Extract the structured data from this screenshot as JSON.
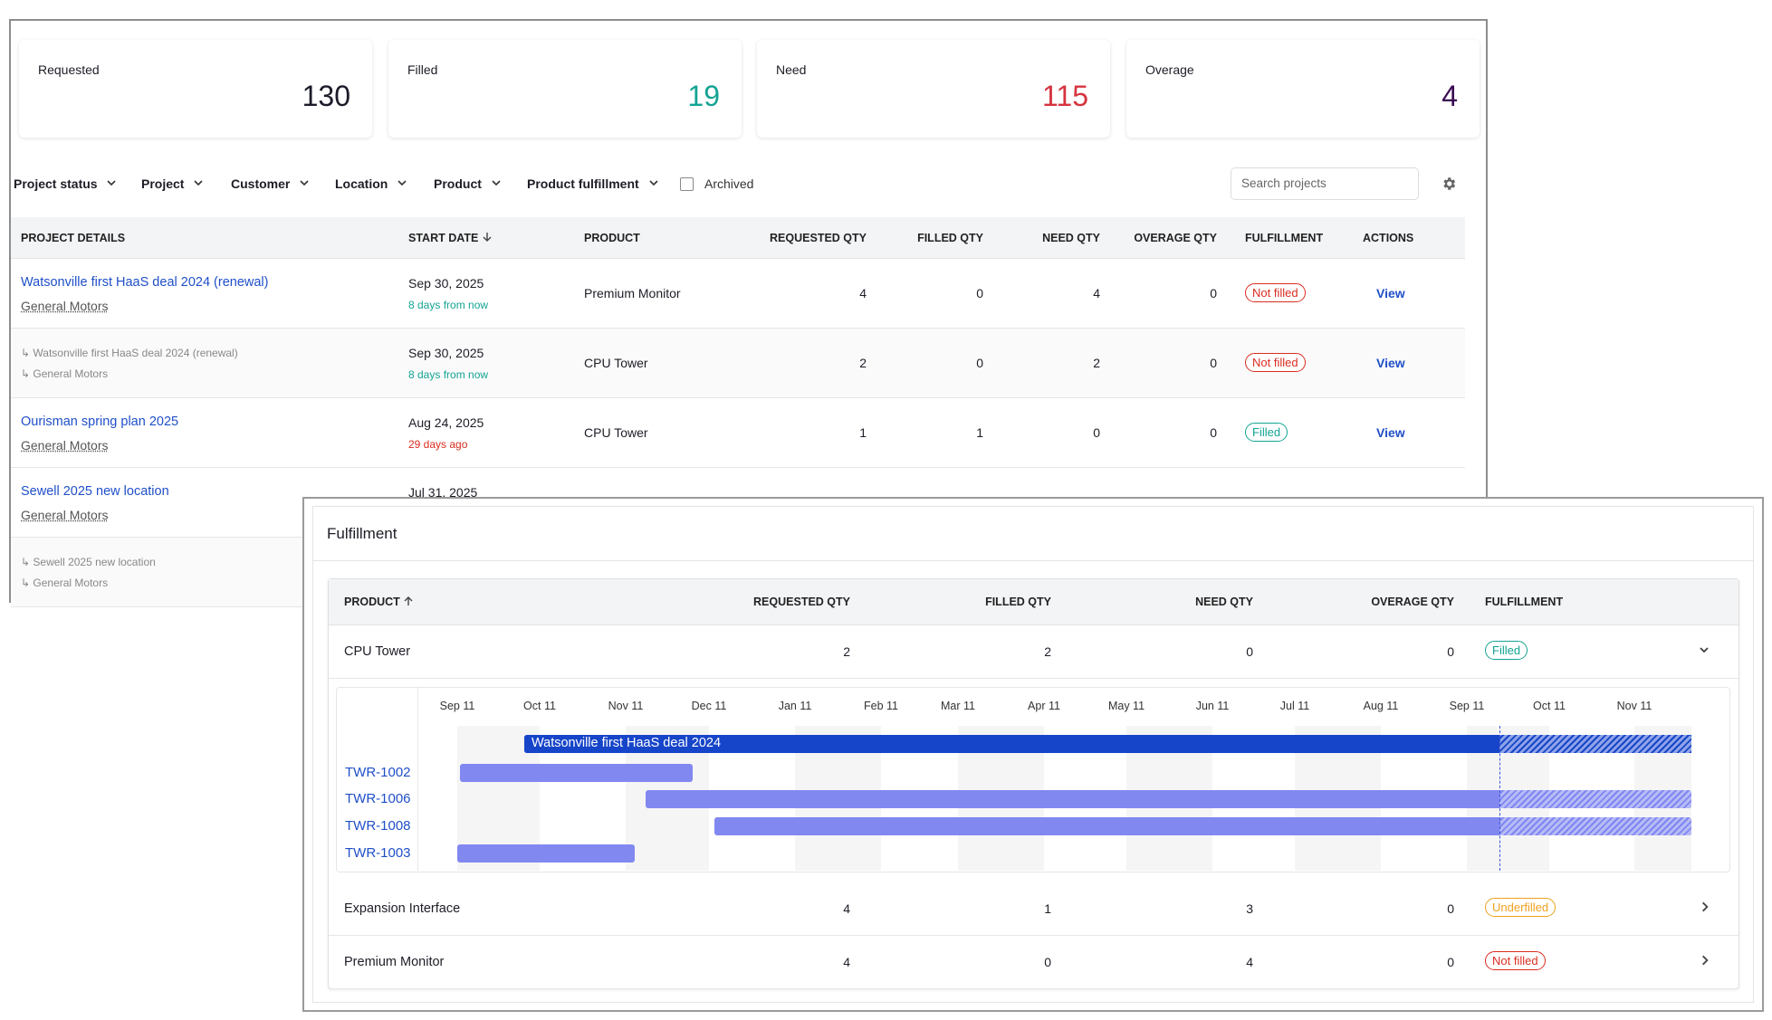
{
  "stats": [
    {
      "label": "Requested",
      "value": 130,
      "color": "#1b1b29"
    },
    {
      "label": "Filled",
      "value": 19,
      "color": "#14a393"
    },
    {
      "label": "Need",
      "value": 115,
      "color": "#d5343f"
    },
    {
      "label": "Overage",
      "value": 4,
      "color": "#3b0b52"
    }
  ],
  "filters": [
    "Project status",
    "Project",
    "Customer",
    "Location",
    "Product",
    "Product fulfillment"
  ],
  "archived": "Archived",
  "search_placeholder": "Search projects",
  "table": {
    "columns": [
      "PROJECT DETAILS",
      "START DATE",
      "PRODUCT",
      "REQUESTED QTY",
      "FILLED QTY",
      "NEED QTY",
      "OVERAGE QTY",
      "FULFILLMENT",
      "ACTIONS"
    ],
    "rows": [
      {
        "project": "Watsonville first HaaS deal 2024 (renewal)",
        "customer": "General Motors",
        "date": "Sep 30, 2025",
        "relative": "8 days from now",
        "relative_color": "#14a393",
        "product": "Premium Monitor",
        "requested": 4,
        "filled": 0,
        "need": 4,
        "overage": 0,
        "fulfillment": "Not filled",
        "fulfillment_color": "#d92d20",
        "action": "View"
      },
      {
        "child": true,
        "project": "↳ Watsonville first HaaS deal 2024 (renewal)",
        "customer": "↳ General Motors",
        "date": "Sep 30, 2025",
        "relative": "8 days from now",
        "relative_color": "#14a393",
        "product": "CPU Tower",
        "requested": 2,
        "filled": 0,
        "need": 2,
        "overage": 0,
        "fulfillment": "Not filled",
        "fulfillment_color": "#d92d20",
        "action": "View"
      },
      {
        "project": "Ourisman spring plan 2025",
        "customer": "General Motors",
        "date": "Aug 24, 2025",
        "relative": "29 days ago",
        "relative_color": "#d92d20",
        "product": "CPU Tower",
        "requested": 1,
        "filled": 1,
        "need": 0,
        "overage": 0,
        "fulfillment": "Filled",
        "fulfillment_color": "#14a393",
        "action": "View"
      },
      {
        "project": "Sewell 2025 new location",
        "customer": "General Motors",
        "date": "Jul 31, 2025"
      },
      {
        "child": true,
        "project": "↳ Sewell 2025 new location",
        "customer": "↳ General Motors"
      }
    ]
  },
  "fulfillment": {
    "title": "Fulfillment",
    "columns": [
      "PRODUCT",
      "REQUESTED QTY",
      "FILLED QTY",
      "NEED QTY",
      "OVERAGE QTY",
      "FULFILLMENT"
    ],
    "rows": [
      {
        "product": "CPU Tower",
        "requested": 2,
        "filled": 2,
        "need": 0,
        "overage": 0,
        "fulfillment": "Filled",
        "fulfillment_color": "#14a393",
        "expanded": true
      },
      {
        "product": "Expansion Interface",
        "requested": 4,
        "filled": 1,
        "need": 3,
        "overage": 0,
        "fulfillment": "Underfilled",
        "fulfillment_color": "#f0a020"
      },
      {
        "product": "Premium Monitor",
        "requested": 4,
        "filled": 0,
        "need": 4,
        "overage": 0,
        "fulfillment": "Not filled",
        "fulfillment_color": "#d92d20"
      }
    ],
    "timeline": {
      "months": [
        "Sep 11",
        "Oct 11",
        "Nov 11",
        "Dec 11",
        "Jan 11",
        "Feb 11",
        "Mar 11",
        "Apr 11",
        "May 11",
        "Jun 11",
        "Jul 11",
        "Aug 11",
        "Sep 11",
        "Oct 11",
        "Nov 11"
      ],
      "project_bar": "Watsonville first HaaS deal 2024",
      "units": [
        "TWR-1002",
        "TWR-1006",
        "TWR-1008",
        "TWR-1003"
      ]
    }
  }
}
